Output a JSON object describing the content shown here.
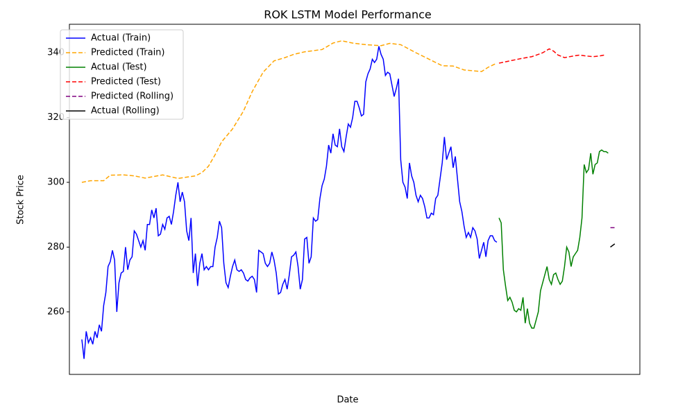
{
  "chart_data": {
    "type": "line",
    "title": "ROK LSTM Model Performance",
    "x_label": "Date",
    "y_label": "Stock Price",
    "xlim": [
      -5.7,
      255.5
    ],
    "ylim": [
      240.7,
      348.8
    ],
    "yticks": [
      260,
      280,
      300,
      320,
      340
    ],
    "grid": false,
    "legend": "upper left",
    "series": [
      {
        "name": "Actual (Train)",
        "color": "#0000ff",
        "linestyle": "solid",
        "x": [
          0,
          1,
          2,
          3,
          4,
          5,
          6,
          7,
          8,
          9,
          10,
          11,
          12,
          13,
          14,
          15,
          16,
          17,
          18,
          19,
          20,
          21,
          22,
          23,
          24,
          25,
          26,
          27,
          28,
          29,
          30,
          31,
          32,
          33,
          34,
          35,
          36,
          37,
          38,
          39,
          40,
          41,
          42,
          43,
          44,
          45,
          46,
          47,
          48,
          49,
          50,
          51,
          52,
          53,
          54,
          55,
          56,
          57,
          58,
          59,
          60,
          61,
          62,
          63,
          64,
          65,
          66,
          67,
          68,
          69,
          70,
          71,
          72,
          73,
          74,
          75,
          76,
          77,
          78,
          79,
          80,
          81,
          82,
          83,
          84,
          85,
          86,
          87,
          88,
          89,
          90,
          91,
          92,
          93,
          94,
          95,
          96,
          97,
          98,
          99,
          100,
          101,
          102,
          103,
          104,
          105,
          106,
          107,
          108,
          109,
          110,
          111,
          112,
          113,
          114,
          115,
          116,
          117,
          118,
          119,
          120,
          121,
          122,
          123,
          124,
          125,
          126,
          127,
          128,
          129,
          130,
          131,
          132,
          133,
          134,
          135,
          136,
          137,
          138,
          139,
          140,
          141,
          142,
          143,
          144,
          145,
          146,
          147,
          148,
          149,
          150,
          151,
          152,
          153,
          154,
          155,
          156,
          157,
          158,
          159,
          160,
          161,
          162,
          163,
          164,
          165,
          166,
          167,
          168,
          169,
          170,
          171,
          172,
          173,
          174,
          175,
          176,
          177,
          178,
          179,
          180,
          181,
          182,
          183,
          184,
          185,
          186,
          187,
          188,
          189,
          190
        ],
        "values": [
          251.5,
          245.5,
          254,
          250.5,
          252,
          250,
          254,
          252,
          256,
          254,
          262,
          266,
          274,
          275.5,
          279,
          276,
          260,
          269,
          272,
          272.5,
          280,
          273,
          276,
          277,
          285,
          284,
          282,
          280,
          282,
          279,
          287,
          287,
          291.5,
          289,
          292,
          283.5,
          284,
          287,
          285.5,
          289,
          289.5,
          287,
          291,
          296,
          300,
          294,
          297,
          294,
          285,
          282,
          289,
          272,
          278,
          268,
          275,
          278,
          273,
          274,
          273,
          274,
          274,
          280,
          283,
          288,
          286,
          275,
          269,
          267.5,
          271,
          274,
          276,
          273,
          272.5,
          273,
          272,
          270,
          269.5,
          270.5,
          271,
          270,
          266,
          279,
          278.5,
          278,
          275,
          274,
          275,
          278.5,
          276,
          272,
          265.5,
          266,
          268.5,
          270,
          267,
          271.5,
          277,
          277.5,
          278.5,
          274,
          267,
          270,
          282.5,
          283,
          275,
          277,
          289,
          288,
          288.5,
          295,
          299,
          301,
          305,
          311.5,
          309,
          315,
          311.5,
          311,
          316.5,
          311,
          309.5,
          314,
          318,
          317,
          320,
          325,
          325,
          323,
          320.5,
          321,
          331,
          333.5,
          335,
          338,
          337,
          338,
          342,
          339.5,
          338,
          333,
          334,
          333.5,
          330,
          326.5,
          329,
          332,
          307,
          300,
          298.5,
          295,
          306,
          302,
          300,
          296,
          294,
          296,
          295,
          292.5,
          289,
          289,
          290.5,
          290,
          295,
          296,
          301,
          306,
          314,
          307,
          309,
          311,
          304.5,
          308,
          301,
          294,
          291,
          286.5,
          283,
          284.5,
          283,
          286,
          285,
          282.5,
          276.5,
          279,
          281.5,
          277,
          282,
          283.5,
          283.5,
          282,
          281.5
        ]
      },
      {
        "name": "Predicted (Train)",
        "color": "#ffa500",
        "linestyle": "dashed",
        "x": [
          0,
          4,
          10,
          13,
          19,
          24,
          29,
          37,
          44,
          52,
          55,
          58,
          61,
          64,
          69,
          74,
          78,
          83,
          88,
          93,
          97,
          102,
          110,
          115,
          119,
          124,
          130,
          137,
          141,
          146,
          153,
          159,
          165,
          170,
          175,
          183,
          186,
          190
        ],
        "values": [
          300,
          300.5,
          300.5,
          302.2,
          302.3,
          302,
          301.3,
          302.3,
          301.2,
          302,
          303,
          305,
          308.5,
          312.5,
          316.5,
          322,
          328,
          334,
          337.5,
          338.5,
          339.5,
          340.3,
          341,
          343,
          343.7,
          343,
          342.5,
          342.2,
          342.9,
          342.5,
          340,
          338,
          336,
          335.9,
          334.7,
          334.2,
          335.5,
          336.8
        ]
      },
      {
        "name": "Actual (Test)",
        "color": "#008000",
        "linestyle": "solid",
        "x": [
          191,
          192,
          193,
          194,
          195,
          196,
          197,
          198,
          199,
          200,
          201,
          202,
          203,
          204,
          205,
          206,
          207,
          208,
          209,
          210,
          211,
          212,
          213,
          214,
          215,
          216,
          217,
          218,
          219,
          220,
          221,
          222,
          223,
          224,
          225,
          226,
          227,
          228,
          229,
          230,
          231,
          232,
          233,
          234,
          235,
          236,
          237,
          238,
          239,
          240,
          241
        ],
        "values": [
          289,
          287.5,
          273,
          268,
          263.5,
          264.5,
          263,
          260.5,
          260,
          261,
          260.5,
          264.5,
          256.5,
          261,
          256.5,
          255,
          255,
          257.5,
          260,
          266.5,
          269,
          271.5,
          274,
          270,
          268.5,
          271.5,
          272,
          270,
          268.5,
          269.5,
          274,
          280,
          278.5,
          274,
          277,
          278,
          279,
          283,
          289,
          305.5,
          303,
          304,
          309,
          302.5,
          305.5,
          306,
          309.5,
          310,
          309.5,
          309.5,
          309
        ]
      },
      {
        "name": "Predicted (Test)",
        "color": "#ff0000",
        "linestyle": "dashed",
        "x": [
          191,
          196,
          201,
          206,
          209,
          211,
          214,
          216,
          218,
          221,
          225,
          228,
          231,
          234,
          237,
          240
        ],
        "values": [
          336.8,
          337.5,
          338.2,
          338.8,
          339.5,
          340,
          341.2,
          340.5,
          339.3,
          338.5,
          339,
          339.3,
          339,
          338.8,
          339,
          339.4
        ]
      },
      {
        "name": "Predicted (Rolling)",
        "color": "#800080",
        "linestyle": "dashed",
        "x": [
          242,
          244
        ],
        "values": [
          286,
          286
        ]
      },
      {
        "name": "Actual (Rolling)",
        "color": "#000000",
        "linestyle": "solid",
        "x": [
          242,
          244
        ],
        "values": [
          280,
          281
        ]
      }
    ]
  }
}
